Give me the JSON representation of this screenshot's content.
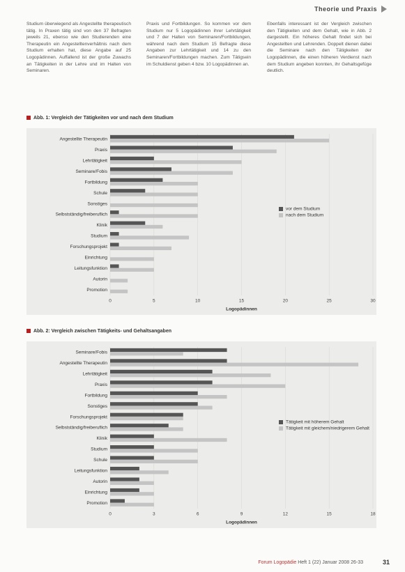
{
  "header": {
    "section": "Theorie und Praxis"
  },
  "body_text": [
    "Studium überwiegend als Angestellte therapeutisch tätig. In Praxen tätig sind von den 37 Befragten jeweils 21, ebenso wie den Studierenden eine Therapeutin ein Angestelltenverhältnis nach dem Studium erhalten hat, diese Angabe auf 25 Logopädinnen. Auffallend ist der große Zuwachs an Tätigkeiten in der Lehre und im Halten von Seminaren.",
    "Praxis und Fortbildungen. So kommen vor dem Studium nur 5 Logopädinnen ihrer Lehrtätigkeit und 7 der Halten von Seminaren/Fortbildungen, während nach dem Studium 15 Befragte diese Angaben zur Lehrtätigkeit und 14 zu den Seminaren/Fortbildungen machen. Zum Tätigsein im Schuldienst geben 4 bzw. 10 Logopädinnen an.",
    "Ebenfalls interessant ist der Vergleich zwischen den Tätigkeiten und dem Gehalt, wie in Abb. 2 dargestellt. Ein höheres Gehalt findet sich bei Angestellten und Lehrenden. Doppelt dienen dabei die Seminare nach den Tätigkeiten der Logopädinnen, die einen höheren Verdienst nach dem Studium angeben konnten, ihr Gehaltsgefüge deutlich."
  ],
  "chart_data": [
    {
      "type": "bar",
      "orientation": "horizontal",
      "title": "Abb. 1: Vergleich der Tätigkeiten vor und nach dem Studium",
      "xlabel": "Logopädinnen",
      "categories": [
        "Angestellte Therapeutin",
        "Praxis",
        "Lehrtätigkeit",
        "Seminare/Fobis",
        "Fortbildung",
        "Schule",
        "Sonstiges",
        "Selbstständig/freiberuflich",
        "Klinik",
        "Studium",
        "Forschungsprojekt",
        "Einrichtung",
        "Leitungsfunktion",
        "Autorin",
        "Promotion"
      ],
      "series": [
        {
          "name": "vor dem Studium",
          "color": "#555555",
          "values": [
            21,
            14,
            5,
            7,
            6,
            4,
            0,
            1,
            4,
            1,
            1,
            0,
            1,
            0,
            0
          ]
        },
        {
          "name": "nach dem Studium",
          "color": "#c4c4c4",
          "values": [
            25,
            19,
            15,
            14,
            10,
            10,
            10,
            10,
            6,
            9,
            7,
            5,
            5,
            2,
            2
          ]
        }
      ],
      "xlim": [
        0,
        30
      ],
      "xticks": [
        0,
        5,
        10,
        15,
        20,
        25,
        30
      ],
      "grid": true,
      "legend": "right"
    },
    {
      "type": "bar",
      "orientation": "horizontal",
      "title": "Abb. 2: Vergleich zwischen Tätigkeits- und Gehaltsangaben",
      "xlabel": "Logopädinnen",
      "categories": [
        "Seminare/Fobis",
        "Angestellte Therapeutin",
        "Lehrtätigkeit",
        "Praxis",
        "Fortbildung",
        "Sonstiges",
        "Forschungsprojekt",
        "Selbstständig/freiberuflich",
        "Klinik",
        "Studium",
        "Schule",
        "Leitungsfunktion",
        "Autorin",
        "Einrichtung",
        "Promotion"
      ],
      "series": [
        {
          "name": "Tätigkeit mit höherem Gehalt",
          "color": "#555555",
          "values": [
            8,
            8,
            7,
            7,
            6,
            6,
            5,
            4,
            3,
            3,
            3,
            2,
            2,
            2,
            1
          ]
        },
        {
          "name": "Tätigkeit mit gleichem/niedrigerem Gehalt",
          "color": "#c4c4c4",
          "values": [
            5,
            17,
            11,
            12,
            8,
            7,
            5,
            5,
            8,
            6,
            6,
            4,
            3,
            3,
            3
          ]
        }
      ],
      "xlim": [
        0,
        18
      ],
      "xticks": [
        0,
        3,
        6,
        9,
        12,
        15,
        18
      ],
      "grid": true,
      "legend": "right"
    }
  ],
  "footer": {
    "journal": "Forum Logopädie",
    "issue": "Heft 1 (22) Januar 2008 26-33",
    "page": "31"
  }
}
